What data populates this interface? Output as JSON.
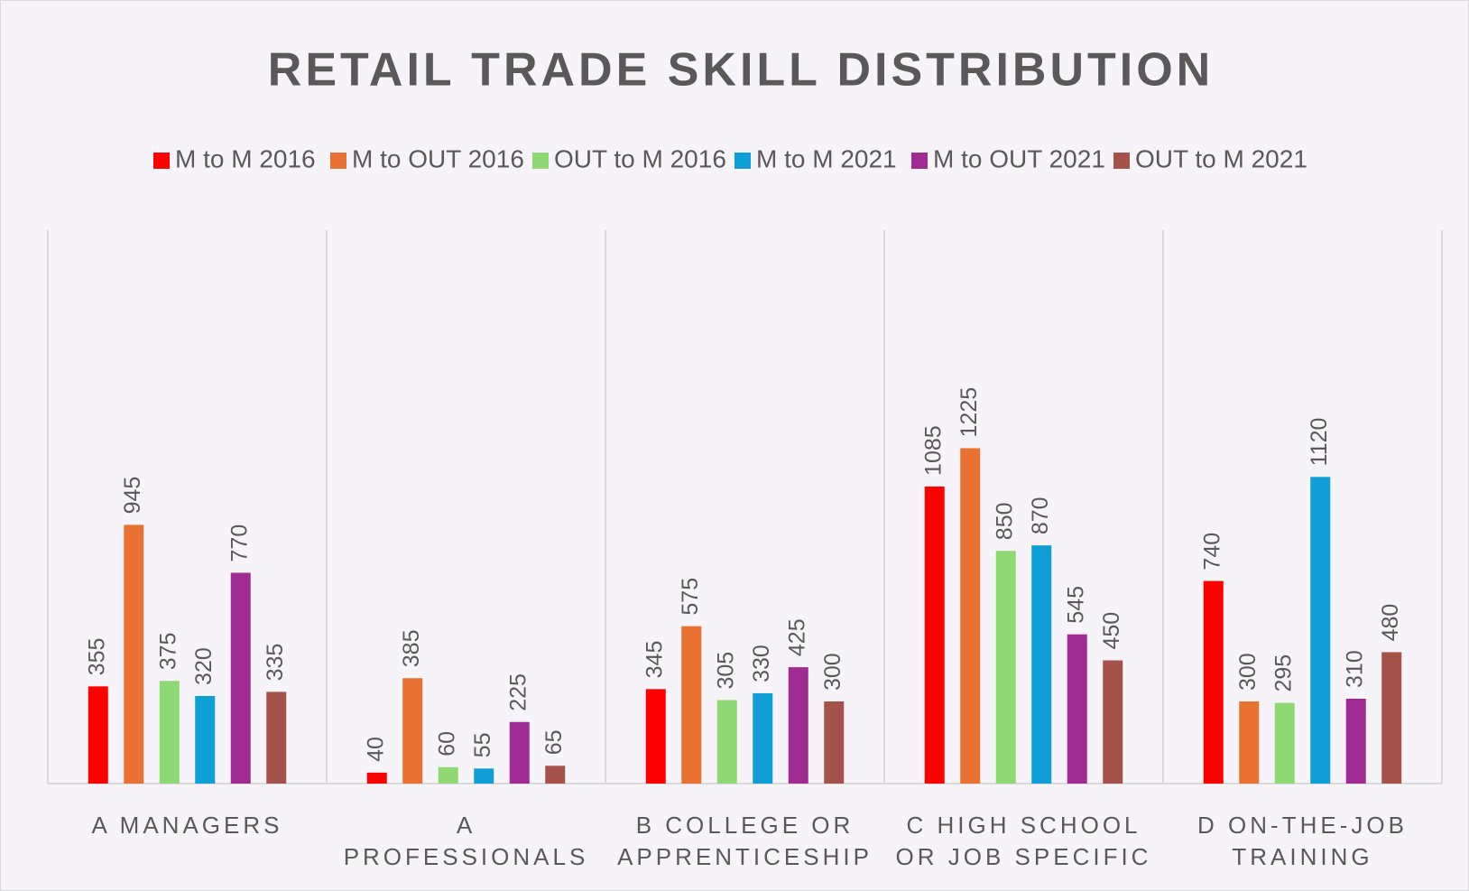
{
  "chart_data": {
    "type": "bar",
    "title": "RETAIL TRADE SKILL DISTRIBUTION",
    "categories": [
      "A MANAGERS",
      "A PROFESSIONALS",
      "B COLLEGE OR APPRENTICESHIP",
      "C HIGH SCHOOL OR JOB SPECIFIC",
      "D ON-THE-JOB TRAINING"
    ],
    "series": [
      {
        "name": "M to M 2016",
        "color": "#ff0000",
        "values": [
          355,
          40,
          345,
          1085,
          740
        ]
      },
      {
        "name": "M to OUT 2016",
        "color": "#e97132",
        "values": [
          945,
          385,
          575,
          1225,
          300
        ]
      },
      {
        "name": "OUT to M 2016",
        "color": "#8ed973",
        "values": [
          375,
          60,
          305,
          850,
          295
        ]
      },
      {
        "name": "M to M 2021",
        "color": "#0f9ed5",
        "values": [
          320,
          55,
          330,
          870,
          1120
        ]
      },
      {
        "name": "M to OUT 2021",
        "color": "#a02b93",
        "values": [
          770,
          225,
          425,
          545,
          310
        ]
      },
      {
        "name": "OUT to M 2021",
        "color": "#a5524a",
        "values": [
          335,
          65,
          300,
          450,
          480
        ]
      }
    ],
    "legend": "top",
    "grid": "vertical"
  }
}
